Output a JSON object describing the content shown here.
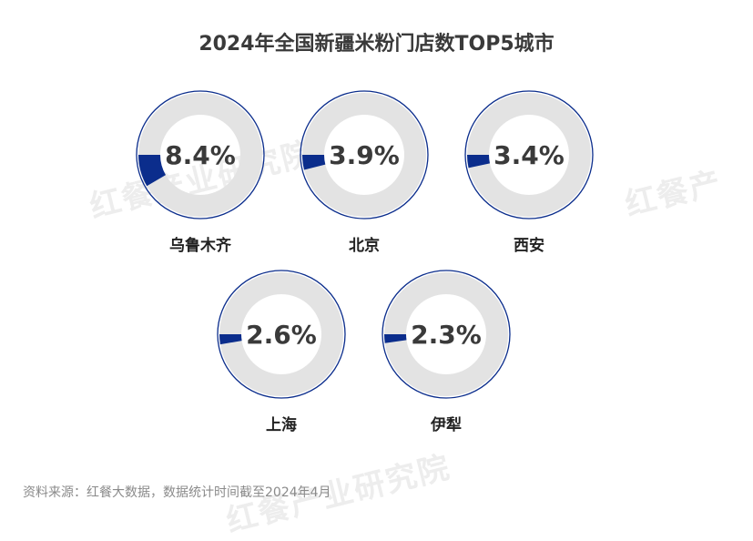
{
  "title": "2024年全国新疆米粉门店数TOP5城市",
  "source": "资料来源：红餐大数据，数据统计时间截至2024年4月",
  "watermarks": [
    "红餐产业研究院",
    "红餐产业研究院",
    "红餐产"
  ],
  "colors": {
    "fill": "#0b2d8c",
    "track": "#e3e3e3",
    "outline": "#0b2d8c",
    "value_text": "#3a3a3a",
    "label_text": "#222222"
  },
  "chart_data": {
    "type": "pie",
    "title": "2024年全国新疆米粉门店数TOP5城市",
    "unit": "%",
    "categories": [
      "乌鲁木齐",
      "北京",
      "西安",
      "上海",
      "伊犁"
    ],
    "values": [
      8.4,
      3.9,
      3.4,
      2.6,
      2.3
    ],
    "value_labels": [
      "8.4%",
      "3.9%",
      "3.4%",
      "2.6%",
      "2.3%"
    ]
  }
}
